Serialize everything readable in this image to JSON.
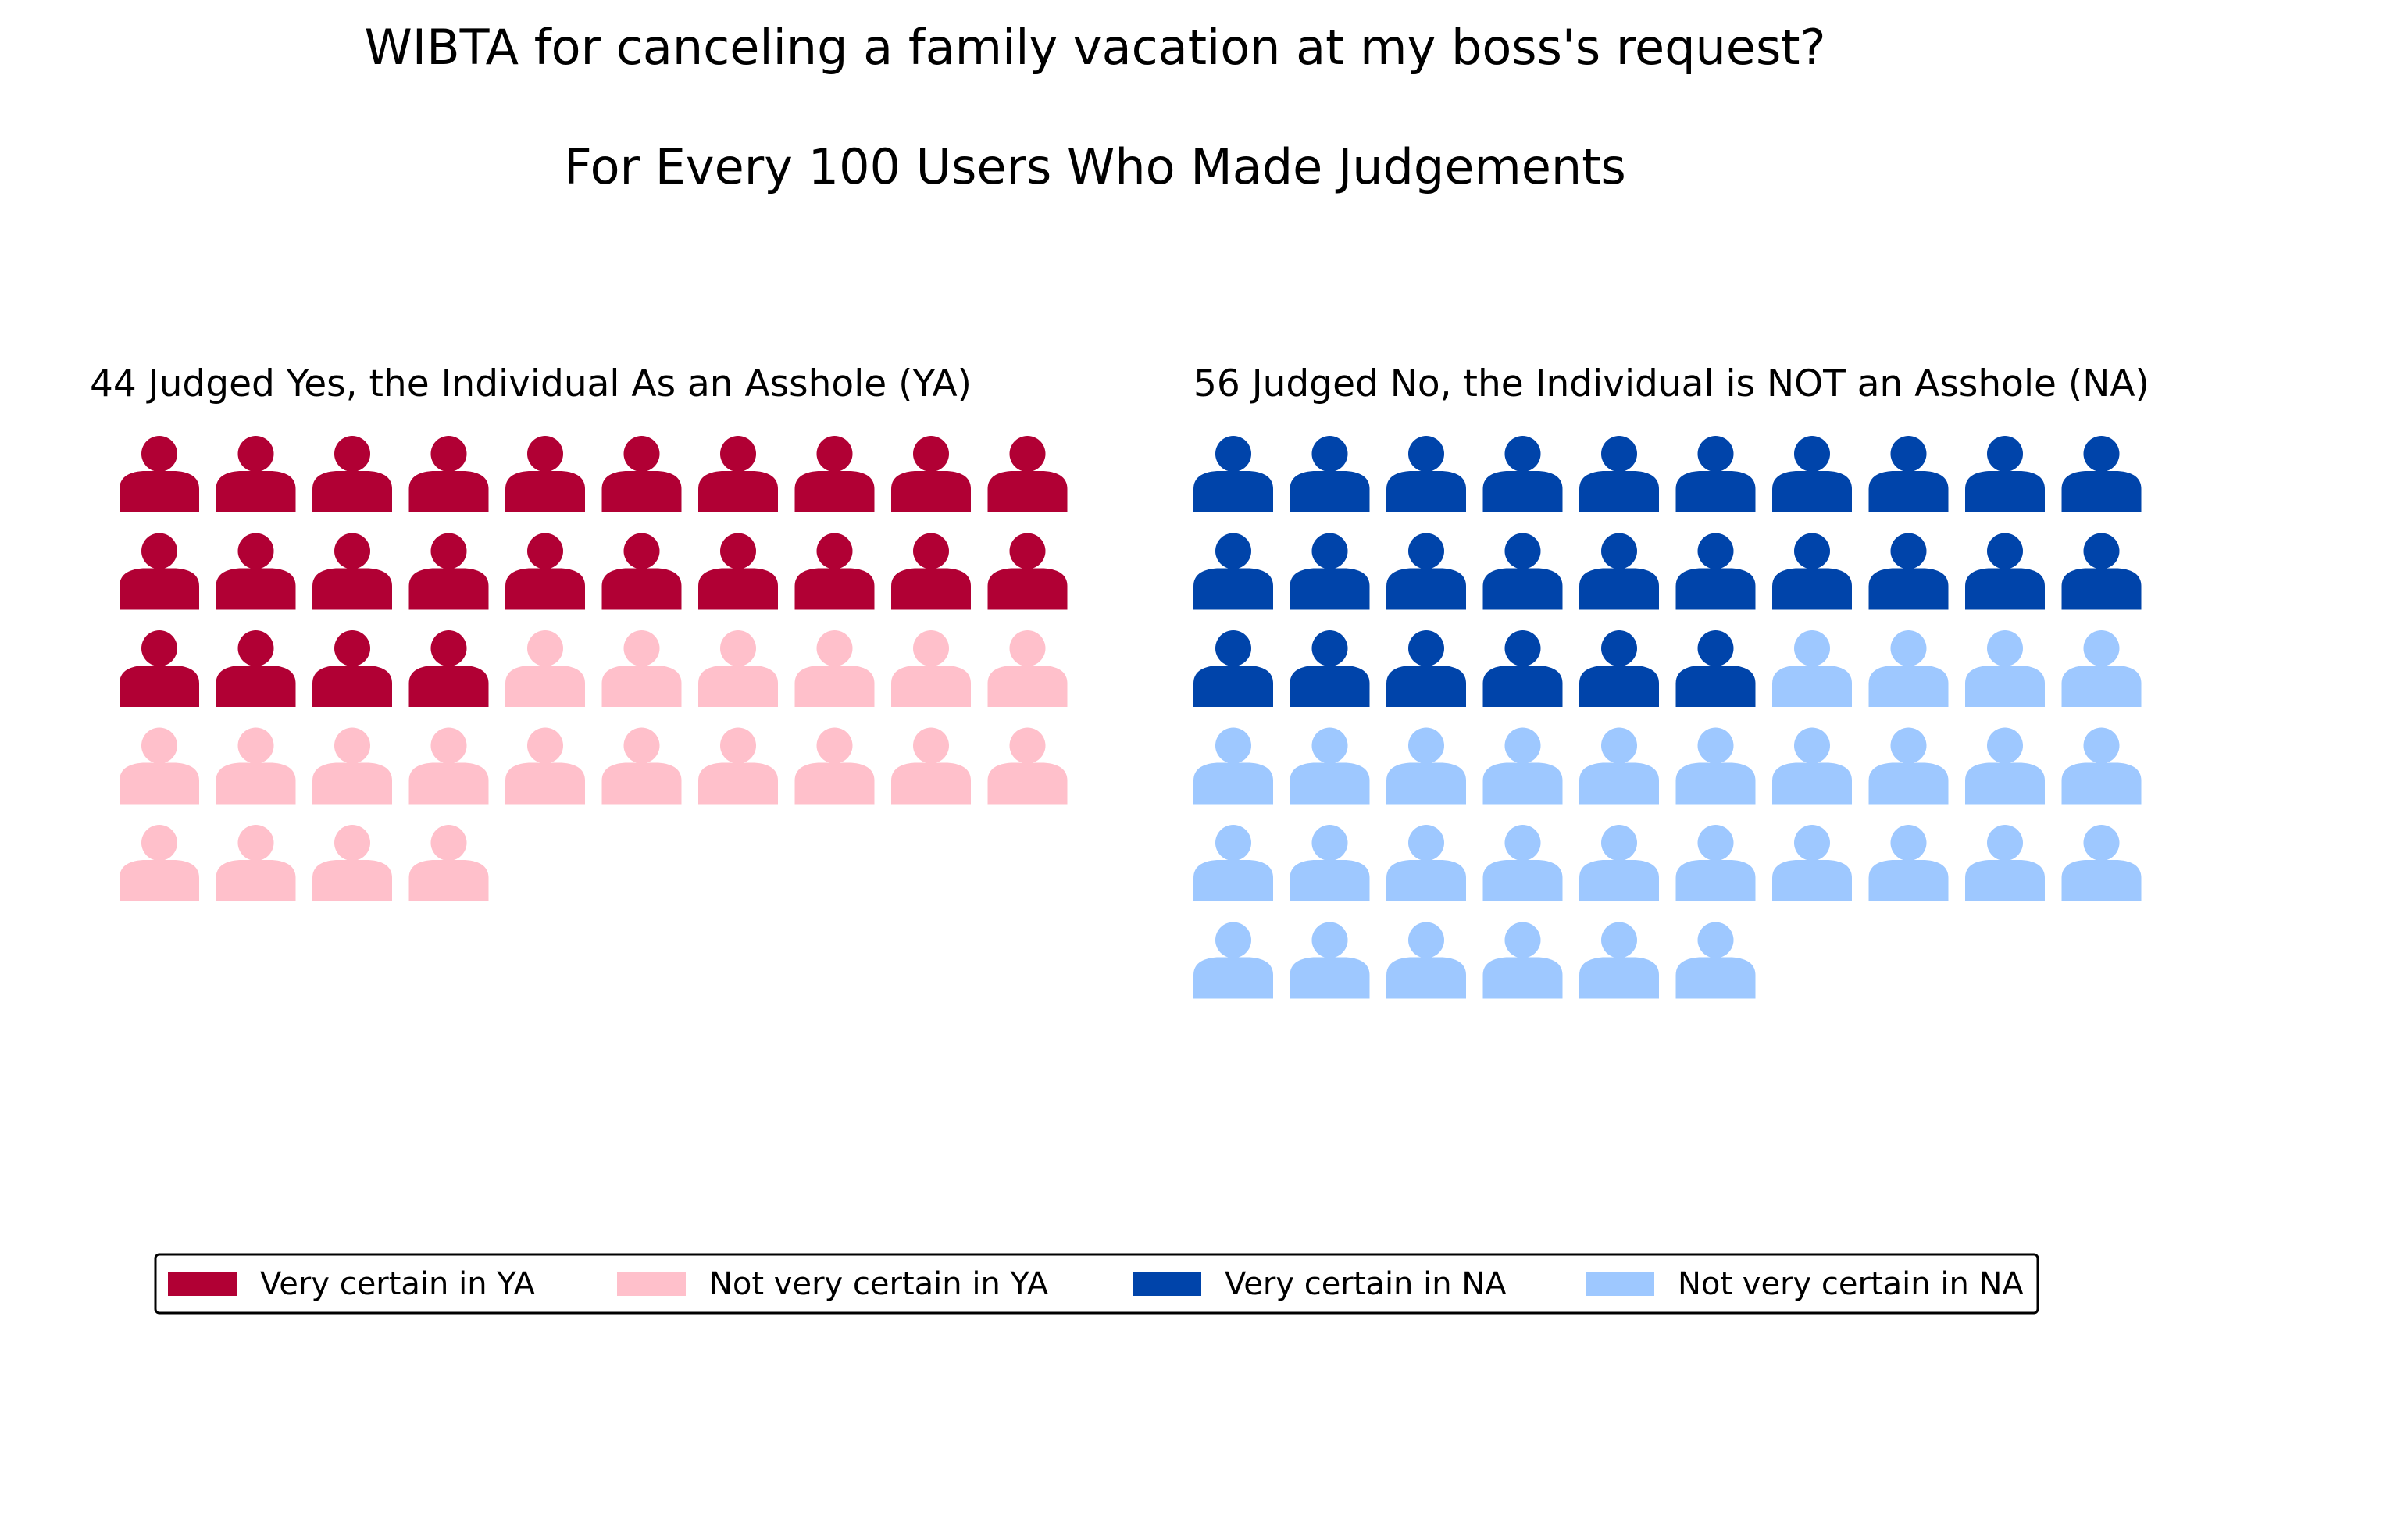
{
  "chart_data": {
    "type": "waffle",
    "title": "WIBTA for canceling a family vacation at my boss's request?",
    "subtitle": "For Every 100 Users Who Made Judgements",
    "icon": "person-icon",
    "columns": 10,
    "panels": [
      {
        "title": "44 Judged Yes, the Individual As an Asshole (YA)",
        "total": 44,
        "segments": [
          {
            "name": "Very certain in YA",
            "count": 24,
            "color": "#b10034"
          },
          {
            "name": "Not very certain in YA",
            "count": 20,
            "color": "#ffc0cb"
          }
        ]
      },
      {
        "title": "56 Judged No, the Individual is NOT an Asshole (NA)",
        "total": 56,
        "segments": [
          {
            "name": "Very certain in NA",
            "count": 26,
            "color": "#0044aa"
          },
          {
            "name": "Not very certain in NA",
            "count": 30,
            "color": "#9ec8ff"
          }
        ]
      }
    ],
    "legend": {
      "position": "bottom",
      "entries": [
        {
          "label": "Very certain in YA",
          "color": "#b10034"
        },
        {
          "label": "Not very certain in YA",
          "color": "#ffc0cb"
        },
        {
          "label": "Very certain in NA",
          "color": "#0044aa"
        },
        {
          "label": "Not very certain in NA",
          "color": "#9ec8ff"
        }
      ]
    }
  }
}
